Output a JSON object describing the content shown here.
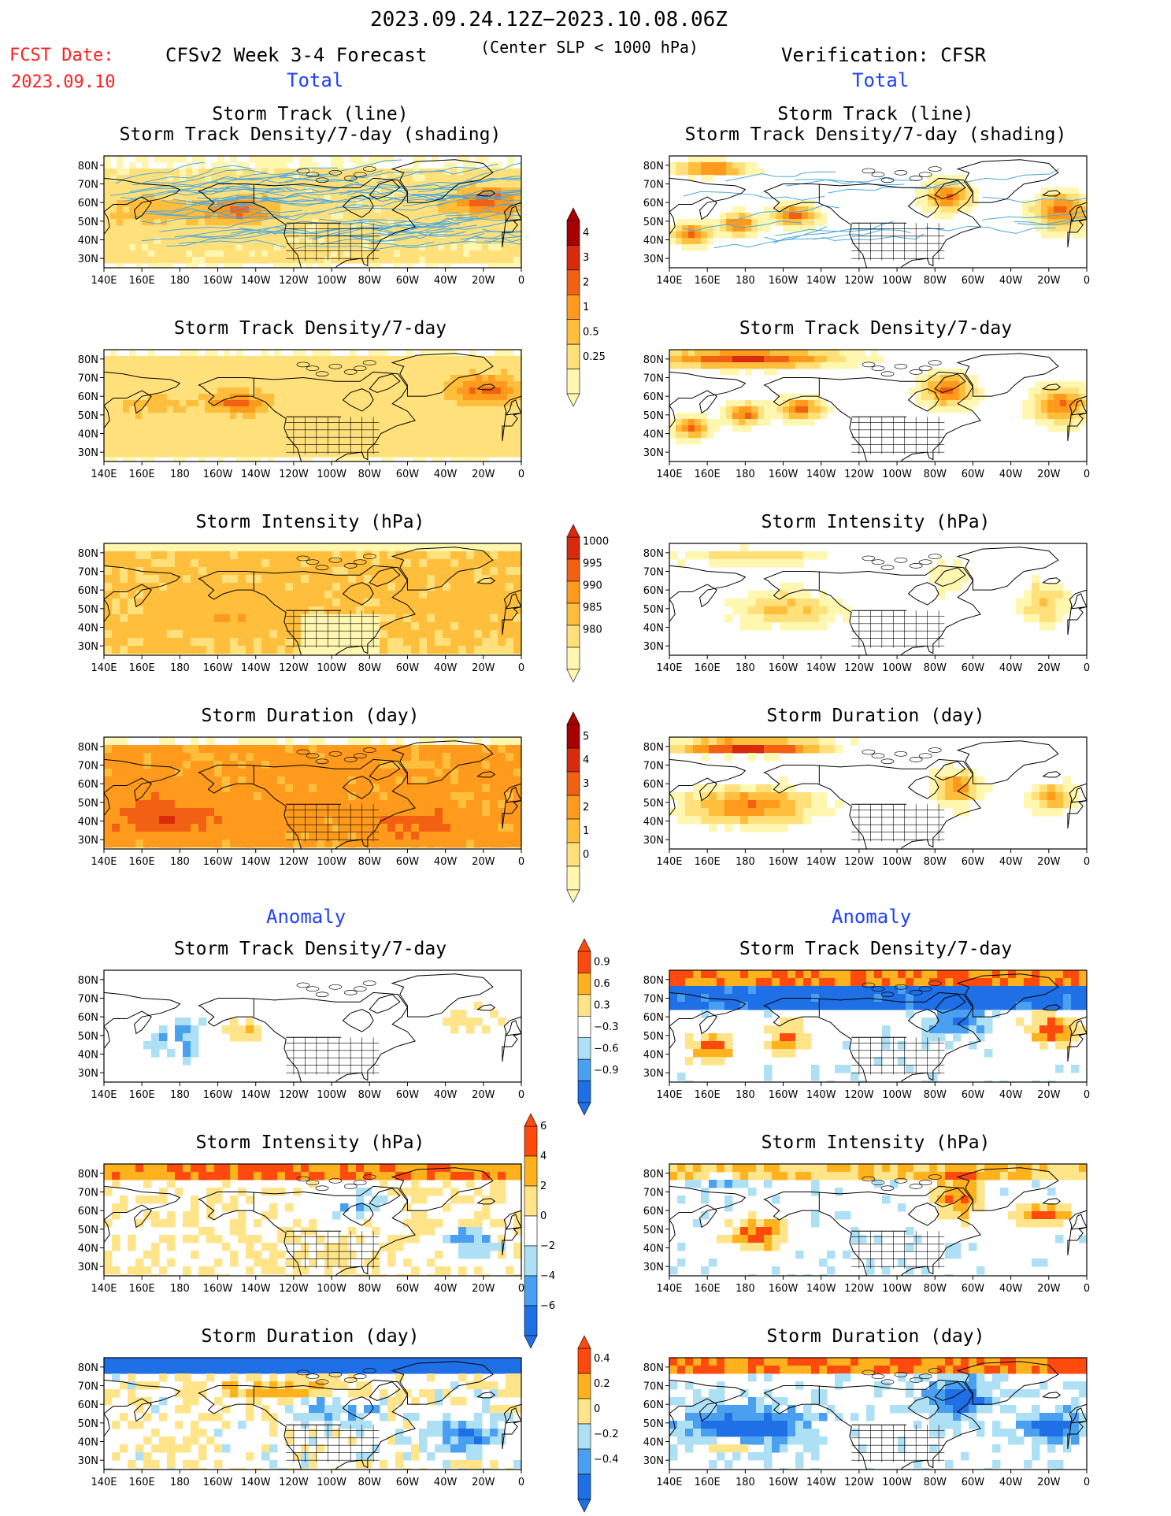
{
  "header": {
    "period": "2023.09.24.12Z−2023.10.08.06Z",
    "fcst_label": "FCST Date:",
    "fcst_date": "2023.09.10",
    "model": "CFSv2 Week 3-4 Forecast",
    "criterion": "(Center SLP < 1000 hPa)",
    "verification": "Verification: CFSR"
  },
  "sections": {
    "total_left": "Total",
    "total_right": "Total",
    "anomaly_left": "Anomaly",
    "anomaly_right": "Anomaly"
  },
  "panel_titles": {
    "track_line": "Storm Track (line)",
    "track_shading": "Storm Track Density/7-day (shading)",
    "density": "Storm Track Density/7-day",
    "intensity": "Storm Intensity (hPa)",
    "duration": "Storm Duration (day)"
  },
  "axes": {
    "lat_labels": [
      "80N",
      "70N",
      "60N",
      "50N",
      "40N",
      "30N"
    ],
    "lon_labels": [
      "140E",
      "160E",
      "180",
      "160W",
      "140W",
      "120W",
      "100W",
      "80W",
      "60W",
      "40W",
      "20W",
      "0"
    ]
  },
  "colorbars": {
    "density_total": [
      "4",
      "3",
      "2",
      "1",
      "0.5",
      "0.25"
    ],
    "intensity_total": [
      "1000",
      "995",
      "990",
      "985",
      "980"
    ],
    "duration_total": [
      "5",
      "4",
      "3",
      "2",
      "1",
      "0"
    ],
    "density_anom": [
      "0.9",
      "0.6",
      "0.3",
      "−0.3",
      "−0.6",
      "−0.9"
    ],
    "intensity_anom": [
      "6",
      "4",
      "2",
      "0",
      "−2",
      "−4",
      "−6"
    ],
    "duration_anom": [
      "0.4",
      "0.2",
      "0",
      "−0.2",
      "−0.4"
    ]
  },
  "colors": {
    "total_scale": [
      "#fff7b0",
      "#ffe07a",
      "#ffbe3c",
      "#ff9a1c",
      "#f26014",
      "#d82a0c",
      "#a80000"
    ],
    "anom_scale": [
      "#1f6fe6",
      "#4aa0f0",
      "#aee0f5",
      "#ffffff",
      "#ffe48a",
      "#ffb21e",
      "#ff4a0e"
    ],
    "track_line": "#4aa7e0",
    "map_line": "#000000",
    "land_white": "#ffffff"
  }
}
